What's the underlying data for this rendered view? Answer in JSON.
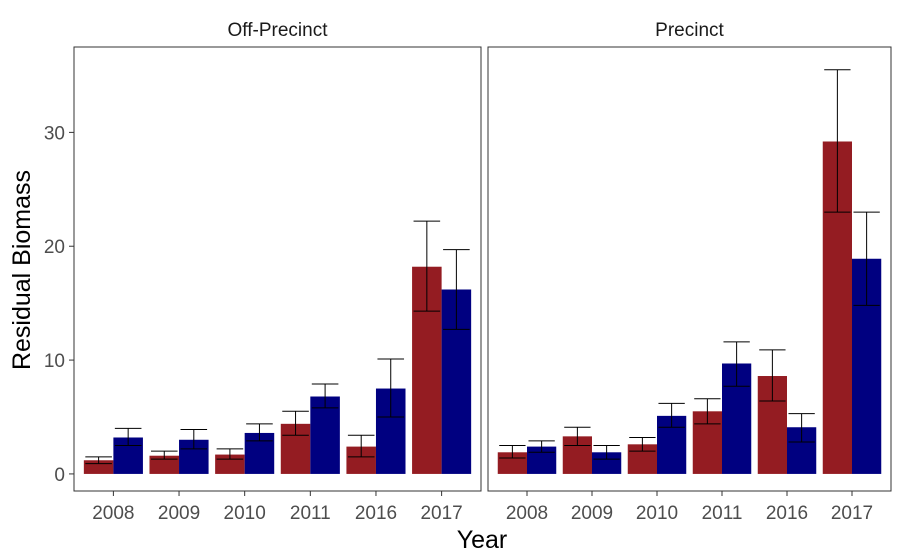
{
  "chart_data": {
    "type": "bar",
    "xlabel": "Year",
    "ylabel": "Residual Biomass",
    "ylim": [
      -1.5,
      37.5
    ],
    "yticks": [
      0,
      10,
      20,
      30
    ],
    "grid": false,
    "colors": [
      "#941c22",
      "#000080"
    ],
    "categories": [
      "2008",
      "2009",
      "2010",
      "2011",
      "2016",
      "2017"
    ],
    "facets": [
      {
        "title": "Off-Precinct",
        "series": [
          {
            "values": [
              1.2,
              1.6,
              1.7,
              4.4,
              2.4,
              18.2
            ],
            "err_low": [
              0.9,
              1.3,
              1.3,
              3.4,
              1.5,
              14.3
            ],
            "err_high": [
              1.5,
              2.0,
              2.2,
              5.5,
              3.4,
              22.2
            ]
          },
          {
            "values": [
              3.2,
              3.0,
              3.6,
              6.8,
              7.5,
              16.2
            ],
            "err_low": [
              2.5,
              2.2,
              2.9,
              5.8,
              5.0,
              12.7
            ],
            "err_high": [
              4.0,
              3.9,
              4.4,
              7.9,
              10.1,
              19.7
            ]
          }
        ]
      },
      {
        "title": "Precinct",
        "series": [
          {
            "values": [
              1.9,
              3.3,
              2.6,
              5.5,
              8.6,
              29.2
            ],
            "err_low": [
              1.4,
              2.5,
              2.0,
              4.4,
              6.4,
              23.0
            ],
            "err_high": [
              2.5,
              4.1,
              3.2,
              6.6,
              10.9,
              35.5
            ]
          },
          {
            "values": [
              2.4,
              1.9,
              5.1,
              9.7,
              4.1,
              18.9
            ],
            "err_low": [
              1.9,
              1.3,
              4.1,
              7.7,
              2.8,
              14.8
            ],
            "err_high": [
              2.9,
              2.5,
              6.2,
              11.6,
              5.3,
              23.0
            ]
          }
        ]
      }
    ]
  }
}
